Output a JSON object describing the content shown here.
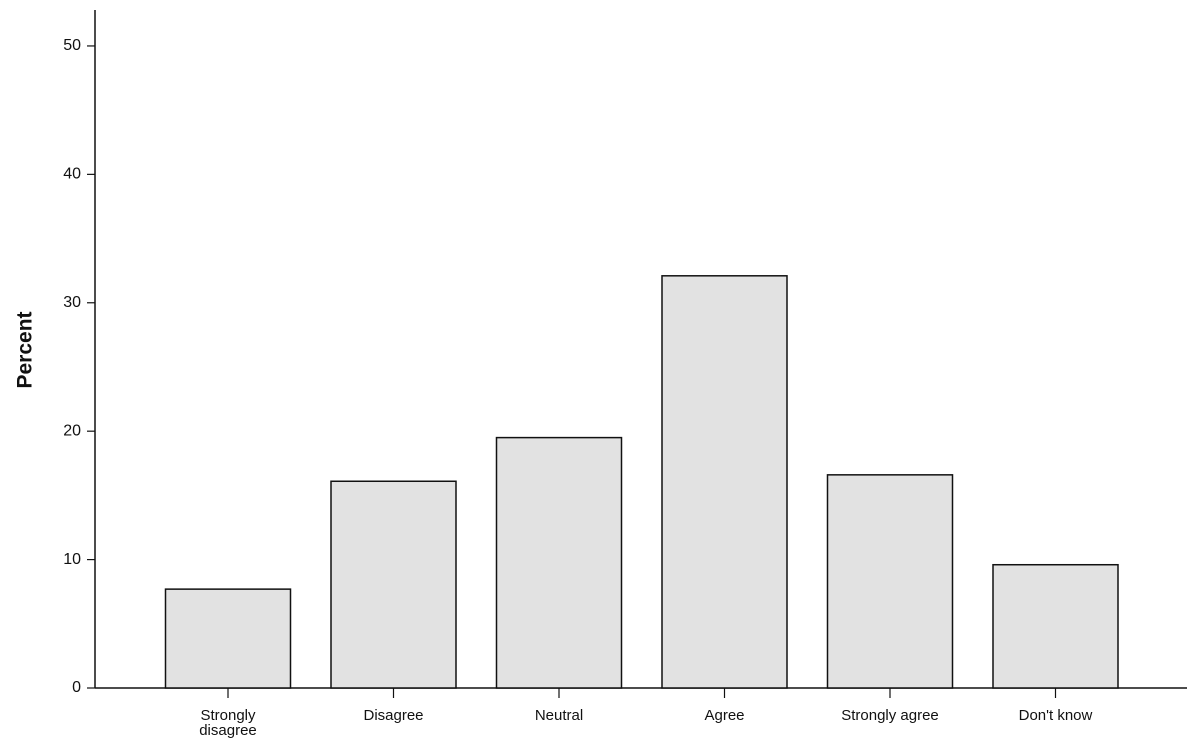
{
  "chart_data": {
    "type": "bar",
    "y_label": "Percent",
    "categories": [
      "Strongly disagree",
      "Disagree",
      "Neutral",
      "Agree",
      "Strongly agree",
      "Don't know"
    ],
    "values": [
      7.7,
      16.1,
      19.5,
      32.1,
      16.6,
      9.6
    ],
    "color": "#e2e2e2",
    "ylim": [
      0,
      52.8
    ],
    "yticks": [
      0,
      10,
      20,
      30,
      40,
      50
    ],
    "grid": false
  }
}
